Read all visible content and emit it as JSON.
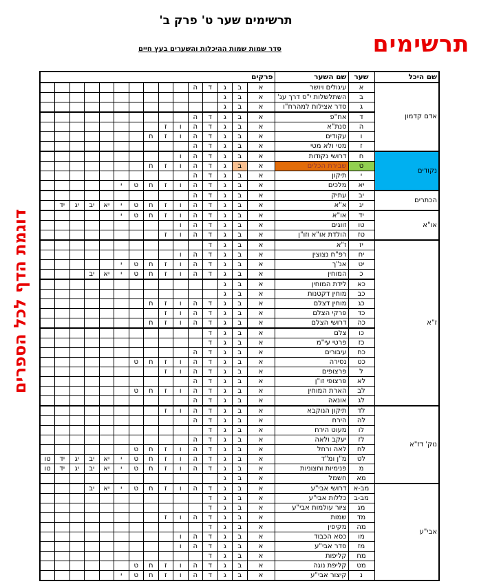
{
  "page": {
    "title": "תרשימים שער ט' פרק ב'",
    "subtitle": "סדר שמות שמות ההיכלות והשערים בעץ חיים",
    "red_banner": "תרשימים",
    "vertical_note": "דוגמת הדף לכל הספרים"
  },
  "colors": {
    "red_accent": "#e80000",
    "cyan_cell": "#00B0F0",
    "green_cell": "#92D050",
    "orange_cell": "#E36C0A",
    "peach_cell": "#FAC090",
    "orange_cell_text": "#943634"
  },
  "table": {
    "headers": {
      "heychal": "שם היכל",
      "shaar": "שער",
      "shaar_name": "שם השער",
      "prakim": "פרקים"
    },
    "chapter_letters": [
      "א",
      "ב",
      "ג",
      "ד",
      "ה",
      "ו",
      "ז",
      "ח",
      "ט",
      "י",
      "יא",
      "יב",
      "יג",
      "יד",
      "טו"
    ],
    "groups": [
      {
        "heychal": "אדם קדמון",
        "heychal_bg": "",
        "rows": [
          {
            "shaar": "א",
            "name": "עיגולים ויושר",
            "chapters": 5
          },
          {
            "shaar": "ב",
            "name": "השתלשלות י\"ס דרך עג'",
            "chapters": 3
          },
          {
            "shaar": "ג",
            "name": "סדר אצילות למהרח\"ו",
            "chapters": 3,
            "thick_below": true
          },
          {
            "shaar": "ד",
            "name": "אח\"פ",
            "chapters": 5
          },
          {
            "shaar": "ה",
            "name": "סנת\"א",
            "chapters": 7
          },
          {
            "shaar": "ו",
            "name": "עקודים",
            "chapters": 8
          },
          {
            "shaar": "ז",
            "name": "מטי ולא מטי",
            "chapters": 5
          }
        ]
      },
      {
        "heychal": "נקודים",
        "heychal_bg": "cyan_cell",
        "rows": [
          {
            "shaar": "ח",
            "name": "דרושי נקודות",
            "chapters": 6
          },
          {
            "shaar": "ט",
            "name": "שבירת הכלים",
            "chapters": 8,
            "gate_bg": "green_cell",
            "name_bg": "orange_cell",
            "name_color": "orange_cell_text",
            "chapter_highlight": {
              "index": 1,
              "bg": "peach_cell"
            }
          },
          {
            "shaar": "י",
            "name": "תיקון",
            "chapters": 5
          },
          {
            "shaar": "יא",
            "name": "מלכים",
            "chapters": 10
          }
        ]
      },
      {
        "heychal": "הכתרים",
        "heychal_bg": "",
        "rows": [
          {
            "shaar": "יב",
            "name": "עתיק",
            "chapters": 5
          },
          {
            "shaar": "יג",
            "name": "א\"א",
            "chapters": 14
          }
        ]
      },
      {
        "heychal": "או\"א",
        "heychal_bg": "",
        "rows": [
          {
            "shaar": "יד",
            "name": "או\"א",
            "chapters": 10
          },
          {
            "shaar": "טו",
            "name": "זווגים",
            "chapters": 6
          },
          {
            "shaar": "טז",
            "name": "הולדת או\"א וזו\"ן",
            "chapters": 7
          }
        ]
      },
      {
        "heychal": "ז\"א",
        "heychal_bg": "",
        "rows": [
          {
            "shaar": "יז",
            "name": "ז\"א",
            "chapters": 4
          },
          {
            "shaar": "יח",
            "name": "רפ\"ח נצוצין",
            "chapters": 6
          },
          {
            "shaar": "יט",
            "name": "אנ\"ך",
            "chapters": 10
          },
          {
            "shaar": "כ",
            "name": "המוחין",
            "chapters": 12,
            "thick_below": true
          },
          {
            "shaar": "כא",
            "name": "לידת המוחין",
            "chapters": 3
          },
          {
            "shaar": "כב",
            "name": "מוחין דקטנות",
            "chapters": 3
          },
          {
            "shaar": "כג",
            "name": "מוחין דצלם",
            "chapters": 8
          },
          {
            "shaar": "כד",
            "name": "פרקי הצלם",
            "chapters": 7
          },
          {
            "shaar": "כה",
            "name": "דרושי הצלם",
            "chapters": 8,
            "thick_below": true
          },
          {
            "shaar": "כו",
            "name": "צלם",
            "chapters": 4
          },
          {
            "shaar": "כז",
            "name": "פרטי עי\"מ",
            "chapters": 4
          },
          {
            "shaar": "כח",
            "name": "עיבורים",
            "chapters": 5
          },
          {
            "shaar": "כט",
            "name": "נסירה",
            "chapters": 9
          },
          {
            "shaar": "ל",
            "name": "פרצופים",
            "chapters": 7
          },
          {
            "shaar": "לא",
            "name": "פרצופי זו\"ן",
            "chapters": 5
          },
          {
            "shaar": "לב",
            "name": "הארת המוחין",
            "chapters": 9
          },
          {
            "shaar": "לג",
            "name": "אונאה",
            "chapters": 5
          }
        ]
      },
      {
        "heychal": "נוק' דז\"א",
        "heychal_bg": "",
        "rows": [
          {
            "shaar": "לד",
            "name": "תיקון הנוקבא",
            "chapters": 7
          },
          {
            "shaar": "לה",
            "name": "הירח",
            "chapters": 5
          },
          {
            "shaar": "לו",
            "name": "מעוט הירח",
            "chapters": 4
          },
          {
            "shaar": "לז",
            "name": "יעקב ולאה",
            "chapters": 5
          },
          {
            "shaar": "לח",
            "name": "לאה ורחל",
            "chapters": 9
          },
          {
            "shaar": "לט",
            "name": "מ\"ן ומ\"ד",
            "chapters": 15
          },
          {
            "shaar": "מ",
            "name": "פנימיות וחצוניות",
            "chapters": 15
          },
          {
            "shaar": "מא",
            "name": "חשמל",
            "chapters": 3
          }
        ]
      },
      {
        "heychal": "אבי\"ע",
        "heychal_bg": "",
        "rows": [
          {
            "shaar": "מב-א",
            "name": "דרושי אבי\"ע",
            "chapters": 12
          },
          {
            "shaar": "מב-ב",
            "name": "כללות אבי\"ע",
            "chapters": 4
          },
          {
            "shaar": "מג",
            "name": "ציור עולמות אבי\"ע",
            "chapters": 4
          },
          {
            "shaar": "מד",
            "name": "שמות",
            "chapters": 7
          },
          {
            "shaar": "מה",
            "name": "מקיפין",
            "chapters": 4
          },
          {
            "shaar": "מו",
            "name": "כסא הכבוד",
            "chapters": 6
          },
          {
            "shaar": "מז",
            "name": "סדר אבי\"ע",
            "chapters": 6
          },
          {
            "shaar": "מח",
            "name": "קליפות",
            "chapters": 4
          },
          {
            "shaar": "מט",
            "name": "קליפת נוגה",
            "chapters": 9
          },
          {
            "shaar": "נ",
            "name": "קיצור אבי\"ע",
            "chapters": 10
          }
        ]
      }
    ]
  }
}
